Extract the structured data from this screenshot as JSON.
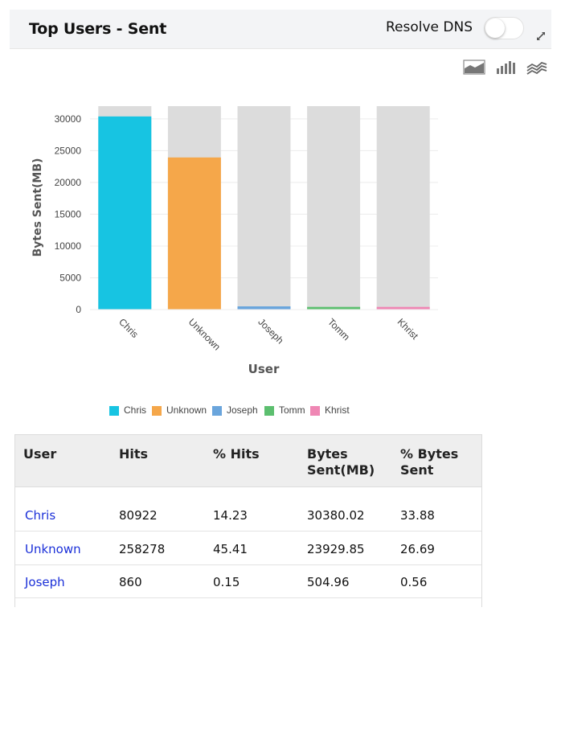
{
  "header": {
    "title": "Top Users - Sent",
    "resolve_dns_label": "Resolve DNS",
    "resolve_dns_on": false
  },
  "chart_type_icons": [
    "area-chart-icon",
    "bar-chart-icon",
    "line-chart-icon"
  ],
  "chart_data": {
    "type": "bar",
    "categories": [
      "Chris",
      "Unknown",
      "Joseph",
      "Tomm",
      "Khrist"
    ],
    "values": [
      30380.02,
      23929.85,
      504.96,
      420,
      420
    ],
    "colors": [
      "#17c4e2",
      "#f5a74a",
      "#6aa5dc",
      "#5cbf6f",
      "#ef87b4"
    ],
    "background_bar_color": "#dcdcdc",
    "xlabel": "User",
    "ylabel": "Bytes Sent(MB)",
    "ylim": [
      0,
      32000
    ],
    "yticks": [
      0,
      5000,
      10000,
      15000,
      20000,
      25000,
      30000
    ],
    "legend": [
      "Chris",
      "Unknown",
      "Joseph",
      "Tomm",
      "Khrist"
    ],
    "legend_position": "bottom",
    "grid": true
  },
  "table": {
    "headers": [
      "User",
      "Hits",
      "% Hits",
      "Bytes\nSent(MB)",
      "% Bytes\nSent"
    ],
    "rows": [
      {
        "user": "Chris",
        "hits": "80922",
        "pct_hits": "14.23",
        "bytes": "30380.02",
        "pct_bytes": "33.88"
      },
      {
        "user": "Unknown",
        "hits": "258278",
        "pct_hits": "45.41",
        "bytes": "23929.85",
        "pct_bytes": "26.69"
      },
      {
        "user": "Joseph",
        "hits": "860",
        "pct_hits": "0.15",
        "bytes": "504.96",
        "pct_bytes": "0.56"
      }
    ]
  }
}
